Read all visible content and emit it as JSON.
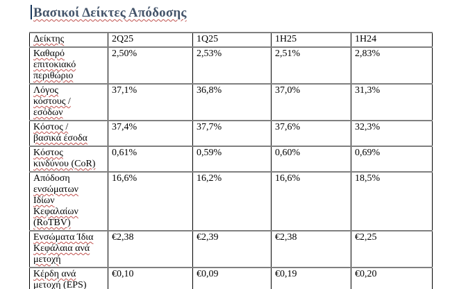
{
  "title": "Βασικοί Δείκτες Απόδοσης",
  "table": {
    "columns": [
      {
        "label": "Δείκτης",
        "wavy": true
      },
      {
        "label": "2Q25",
        "wavy": false
      },
      {
        "label": "1Q25",
        "wavy": false
      },
      {
        "label": "1H25",
        "wavy": false
      },
      {
        "label": "1H24",
        "wavy": false
      }
    ],
    "rows": [
      {
        "metric": "Καθαρό επιτοκιακό περιθώριο",
        "metric_lines": [
          {
            "text": "Καθαρό",
            "wavy": true
          },
          {
            "text": "επιτοκιακό",
            "wavy": true
          },
          {
            "text": "περιθώριο",
            "wavy": true
          }
        ],
        "values": [
          "2,50%",
          "2,53%",
          "2,51%",
          "2,83%"
        ]
      },
      {
        "metric": "Λόγος κόστους / εσόδων",
        "metric_lines": [
          {
            "text": "Λόγος",
            "wavy": true
          },
          {
            "text": "κόστους /",
            "wavy": true
          },
          {
            "text": "εσόδων",
            "wavy": true
          }
        ],
        "values": [
          "37,1%",
          "36,8%",
          "37,0%",
          "31,3%"
        ]
      },
      {
        "metric": "Κόστος / βασικά έσοδα",
        "metric_lines": [
          {
            "text": "Κόστος /",
            "wavy": true
          },
          {
            "text": "βασικά έσοδα",
            "wavy": true
          }
        ],
        "values": [
          "37,4%",
          "37,7%",
          "37,6%",
          "32,3%"
        ]
      },
      {
        "metric": "Κόστος κινδύνου (CoR)",
        "metric_lines": [
          {
            "text": "Κόστος",
            "wavy": true
          },
          {
            "text": "κινδύνου (CoR)",
            "wavy": true
          }
        ],
        "values": [
          "0,61%",
          "0,59%",
          "0,60%",
          "0,69%"
        ]
      },
      {
        "metric": "Απόδοση ενσώματων Ιδίων Κεφαλαίων (RoTBV)",
        "metric_lines": [
          {
            "text": "Απόδοση",
            "wavy": false
          },
          {
            "text": "ενσώματων",
            "wavy": true
          },
          {
            "text": "Ιδίων",
            "wavy": true
          },
          {
            "text": "Κεφαλαίων",
            "wavy": true
          },
          {
            "text": "(RoTBV)",
            "wavy": true
          }
        ],
        "values": [
          "16,6%",
          "16,2%",
          "16,6%",
          "18,5%"
        ]
      },
      {
        "metric": "Ενσώματα Ίδια Κεφάλαια ανά μετοχή",
        "metric_lines": [
          {
            "text": "Ενσώματα Ίδια",
            "wavy": true
          },
          {
            "text": "Κεφάλαια ανά",
            "wavy": true
          },
          {
            "text": "μετοχή",
            "wavy": true
          }
        ],
        "values": [
          "€2,38",
          "€2,39",
          "€2,38",
          "€2,25"
        ]
      },
      {
        "metric": "Κέρδη ανά μετοχή (EPS)",
        "metric_lines": [
          {
            "text": "Κέρδη ανά",
            "wavy": true
          },
          {
            "text": "μετοχή (EPS)",
            "wavy": true
          }
        ],
        "values": [
          "€0,10",
          "€0,09",
          "€0,19",
          "€0,20"
        ]
      }
    ]
  },
  "colors": {
    "title_text": "#44546A",
    "spellcheck_underline": "#C0504D",
    "horizontal_border": "#7F7F7F",
    "vertical_border": "#000000",
    "caret": "#17365D"
  }
}
